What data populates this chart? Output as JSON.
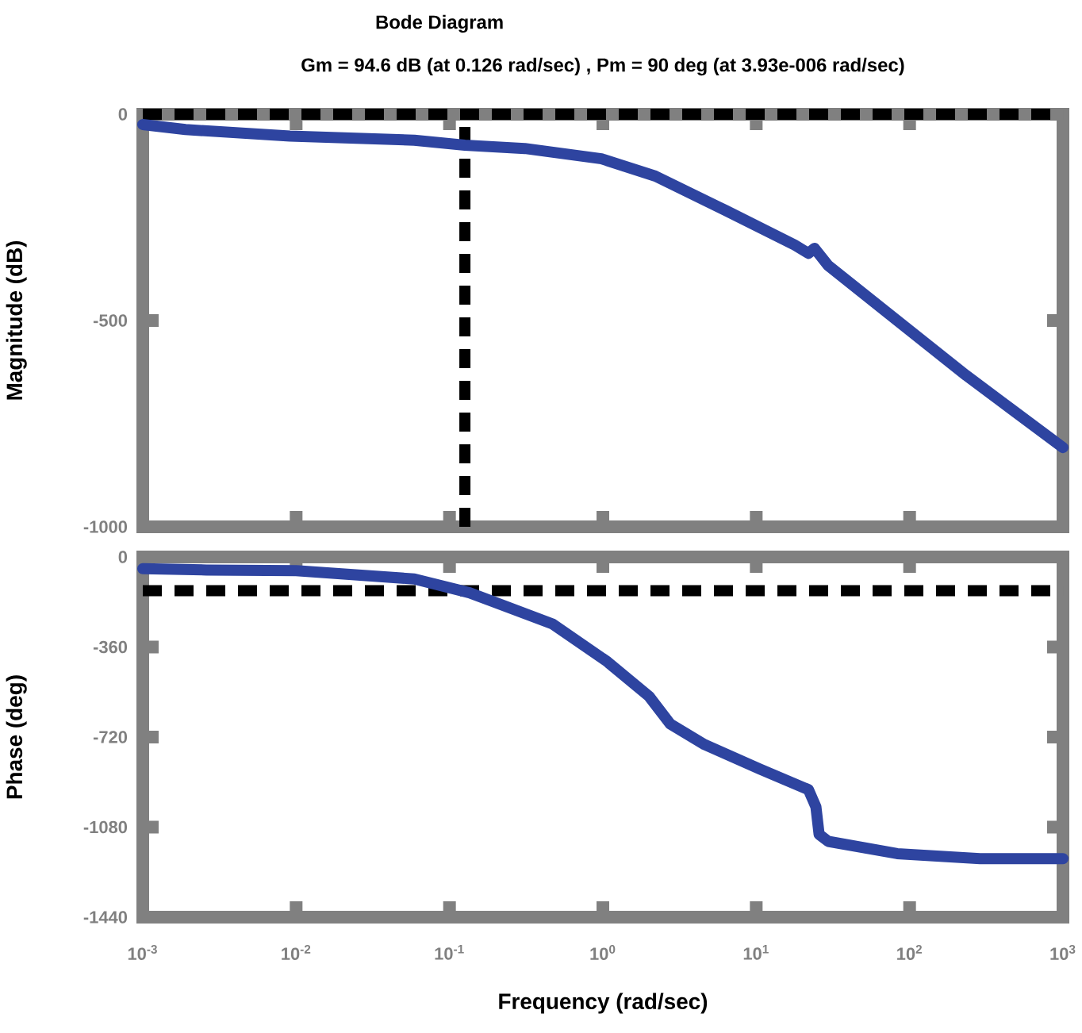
{
  "chart_data": [
    {
      "type": "line",
      "title": "Bode Diagram",
      "subtitle": "Gm = 94.6 dB (at 0.126 rad/sec) ,  Pm = 90 deg (at 3.93e-006 rad/sec)",
      "ylabel": "Magnitude (dB)",
      "log": "x",
      "tick_labels": "y",
      "xlim": [
        0.001,
        1000
      ],
      "xticks": [
        {
          "value": 0.001,
          "label": null
        },
        {
          "value": 0.01,
          "label": null
        },
        {
          "value": 0.1,
          "label": null
        },
        {
          "value": 1,
          "label": null
        },
        {
          "value": 10,
          "label": null
        },
        {
          "value": 100,
          "label": null
        },
        {
          "value": 1000,
          "label": null
        }
      ],
      "ylim": [
        -1000,
        0
      ],
      "yticks": [
        -1000,
        -500,
        0
      ],
      "ref_lines": [
        {
          "axis": "y",
          "value": 0,
          "color": "#000000",
          "line_style": "dashed"
        },
        {
          "axis": "x",
          "value": 0.126,
          "color": "#000000",
          "line_style": "dashed"
        }
      ],
      "series": [
        {
          "color": "#2e44a0",
          "x": [
            0.001,
            0.0019,
            0.0091,
            0.059,
            0.126,
            0.31,
            0.98,
            2.2,
            6.3,
            17.8,
            21.9,
            24,
            29.5,
            83,
            234,
            1000
          ],
          "values": [
            -25,
            -37,
            -53,
            -63,
            -75,
            -83,
            -108,
            -150,
            -233,
            -317,
            -337,
            -325,
            -367,
            -500,
            -633,
            -808
          ]
        }
      ]
    },
    {
      "type": "line",
      "xlabel": "Frequency  (rad/sec)",
      "ylabel": "Phase (deg)",
      "log": "x",
      "xlim": [
        0.001,
        1000
      ],
      "xticks": [
        {
          "value": 0.001,
          "label": "10$^{-3}$"
        },
        {
          "value": 0.01,
          "label": "10$^{-2}$"
        },
        {
          "value": 0.1,
          "label": "10$^{-1}$"
        },
        {
          "value": 1,
          "label": "10$^{0}$"
        },
        {
          "value": 10,
          "label": "10$^{1}$"
        },
        {
          "value": 100,
          "label": "10$^{2}$"
        },
        {
          "value": 1000,
          "label": "10$^{3}$"
        }
      ],
      "ylim": [
        -1440,
        0
      ],
      "yticks": [
        -1440,
        -1080,
        -720,
        -360,
        0
      ],
      "ref_lines": [
        {
          "axis": "y",
          "value": -135,
          "color": "#000000",
          "line_style": "dashed"
        }
      ],
      "series": [
        {
          "color": "#2e44a0",
          "x": [
            0.001,
            0.0026,
            0.01,
            0.059,
            0.135,
            0.47,
            1.07,
            2,
            2.75,
            4.6,
            10.5,
            21.9,
            24.5,
            25.7,
            29.5,
            83,
            288,
            1000
          ],
          "values": [
            -47,
            -52,
            -55,
            -88,
            -143,
            -268,
            -419,
            -557,
            -668,
            -750,
            -847,
            -930,
            -999,
            -1109,
            -1137,
            -1186,
            -1206,
            -1206
          ]
        }
      ]
    }
  ]
}
